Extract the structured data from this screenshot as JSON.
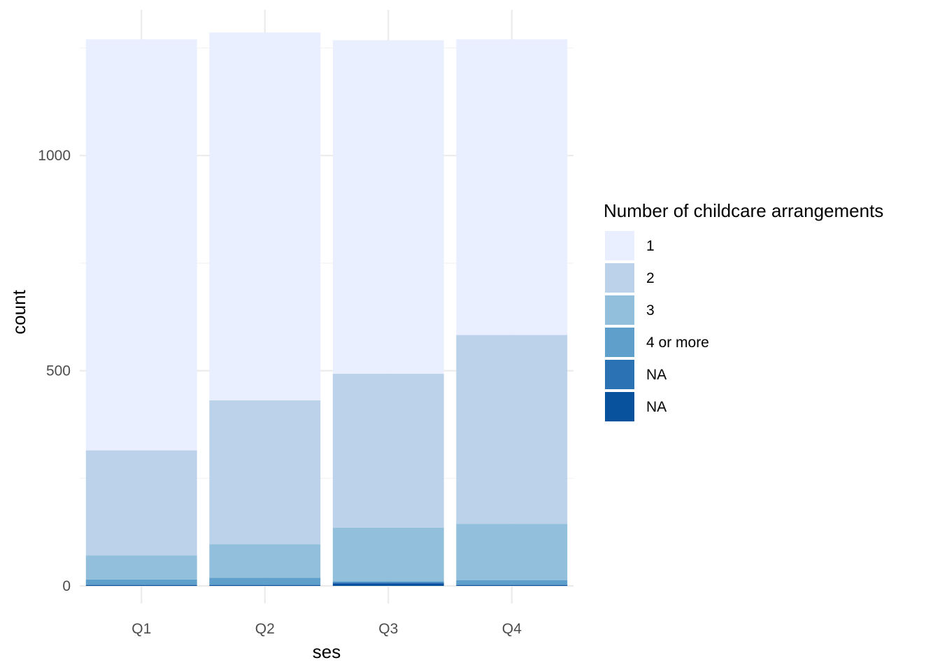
{
  "chart_data": {
    "type": "bar",
    "stacked": true,
    "title": "",
    "xlabel": "ses",
    "ylabel": "count",
    "categories": [
      "Q1",
      "Q2",
      "Q3",
      "Q4"
    ],
    "ylim": [
      0,
      1250
    ],
    "yticks": [
      0,
      500,
      1000
    ],
    "grid": true,
    "legend": {
      "title": "Number of childcare arrangements",
      "placement": "right"
    },
    "series": [
      {
        "name": "NA",
        "color": "#08519c",
        "values": [
          2,
          2,
          6,
          2
        ]
      },
      {
        "name": "NA",
        "color": "#2b72b5",
        "values": [
          1,
          1,
          2,
          1
        ]
      },
      {
        "name": "4 or more",
        "color": "#5ea0cb",
        "values": [
          12,
          16,
          3,
          10
        ]
      },
      {
        "name": "3",
        "color": "#92bfdb",
        "values": [
          56,
          78,
          124,
          131
        ]
      },
      {
        "name": "2",
        "color": "#bcd2ea",
        "values": [
          244,
          334,
          358,
          439
        ]
      },
      {
        "name": "1",
        "color": "#e9efff",
        "values": [
          955,
          855,
          775,
          687
        ]
      }
    ],
    "legend_order": [
      5,
      4,
      3,
      2,
      1,
      0
    ]
  }
}
